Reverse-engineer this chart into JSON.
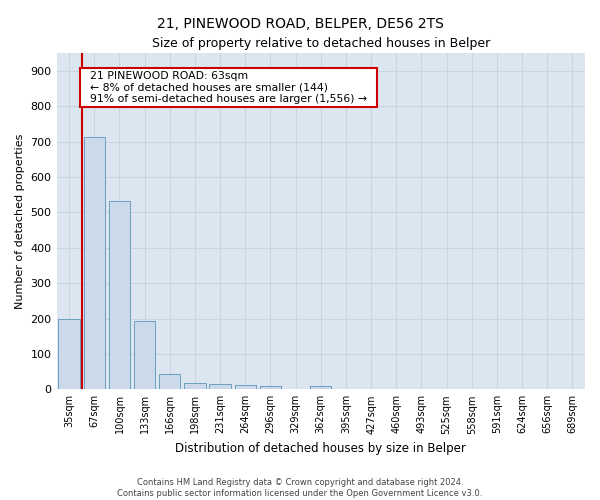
{
  "title1": "21, PINEWOOD ROAD, BELPER, DE56 2TS",
  "title2": "Size of property relative to detached houses in Belper",
  "xlabel": "Distribution of detached houses by size in Belper",
  "ylabel": "Number of detached properties",
  "footer1": "Contains HM Land Registry data © Crown copyright and database right 2024.",
  "footer2": "Contains public sector information licensed under the Open Government Licence v3.0.",
  "annotation_line1": "21 PINEWOOD ROAD: 63sqm",
  "annotation_line2": "← 8% of detached houses are smaller (144)",
  "annotation_line3": "91% of semi-detached houses are larger (1,556) →",
  "bar_labels": [
    "35sqm",
    "67sqm",
    "100sqm",
    "133sqm",
    "166sqm",
    "198sqm",
    "231sqm",
    "264sqm",
    "296sqm",
    "329sqm",
    "362sqm",
    "395sqm",
    "427sqm",
    "460sqm",
    "493sqm",
    "525sqm",
    "558sqm",
    "591sqm",
    "624sqm",
    "656sqm",
    "689sqm"
  ],
  "bar_values": [
    200,
    714,
    533,
    193,
    43,
    18,
    14,
    12,
    9,
    0,
    9,
    0,
    0,
    0,
    0,
    0,
    0,
    0,
    0,
    0,
    0
  ],
  "bar_color": "#ccd9ea",
  "bar_edge_color": "#6a9fc0",
  "ylim": [
    0,
    950
  ],
  "yticks": [
    0,
    100,
    200,
    300,
    400,
    500,
    600,
    700,
    800,
    900
  ],
  "grid_color": "#c8d4e0",
  "annotation_box_facecolor": "#ffffff",
  "annotation_box_edgecolor": "#cc0000",
  "vline_color": "#cc0000",
  "bg_color": "#dce6f0"
}
